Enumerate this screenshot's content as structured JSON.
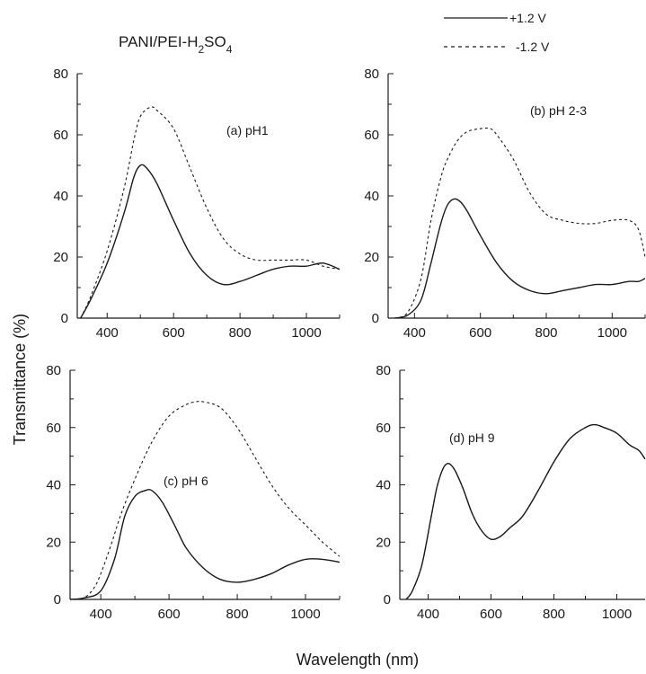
{
  "figure": {
    "title": "PANI/PEI-H",
    "title_sub": "2",
    "title_mid": "SO",
    "title_sub2": "4",
    "xlabel": "Wavelength (nm)",
    "ylabel": "Transmittance (%)"
  },
  "legend": [
    {
      "label": "+1.2 V",
      "style": "solid"
    },
    {
      "label": "-1.2 V",
      "style": "dashed"
    }
  ],
  "chart_data": [
    {
      "type": "line",
      "panel_label": "(a) pH1",
      "xlim": [
        310,
        1100
      ],
      "ylim": [
        0,
        80
      ],
      "xticks": [
        400,
        600,
        800,
        1000
      ],
      "xtick_labels": [
        "400",
        "600",
        "800",
        "1000"
      ],
      "yticks": [
        0,
        20,
        40,
        60,
        80
      ],
      "ytick_labels": [
        "0",
        "20",
        "40",
        "60",
        "80"
      ],
      "series": [
        {
          "name": "+1.2 V",
          "style": "solid",
          "x": [
            320,
            350,
            400,
            450,
            480,
            500,
            520,
            550,
            600,
            650,
            700,
            750,
            800,
            850,
            900,
            950,
            1000,
            1050,
            1100
          ],
          "y": [
            0,
            6,
            18,
            34,
            46,
            50,
            49,
            44,
            32,
            21,
            14,
            11,
            12,
            14,
            16,
            17,
            17,
            18,
            16
          ]
        },
        {
          "name": "-1.2 V",
          "style": "dashed",
          "x": [
            320,
            350,
            400,
            450,
            480,
            500,
            530,
            550,
            600,
            650,
            700,
            750,
            800,
            850,
            900,
            950,
            1000,
            1050,
            1100
          ],
          "y": [
            0,
            7,
            22,
            42,
            58,
            66,
            69,
            68,
            62,
            49,
            36,
            26,
            21,
            19,
            19,
            19,
            19,
            17,
            16
          ]
        }
      ]
    },
    {
      "type": "line",
      "panel_label": "(b) pH 2-3",
      "xlim": [
        320,
        1100
      ],
      "ylim": [
        0,
        80
      ],
      "xticks": [
        400,
        600,
        800,
        1000
      ],
      "xtick_labels": [
        "400",
        "600",
        "800",
        "1000"
      ],
      "yticks": [
        0,
        20,
        40,
        60,
        80
      ],
      "ytick_labels": [
        "0",
        "20",
        "40",
        "60",
        "80"
      ],
      "series": [
        {
          "name": "+1.2 V",
          "style": "solid",
          "x": [
            340,
            380,
            420,
            450,
            480,
            500,
            520,
            540,
            560,
            600,
            650,
            700,
            750,
            800,
            850,
            900,
            950,
            1000,
            1050,
            1080,
            1100
          ],
          "y": [
            0,
            1,
            6,
            18,
            31,
            37,
            39,
            38,
            35,
            27,
            18,
            12,
            9,
            8,
            9,
            10,
            11,
            11,
            12,
            12,
            13
          ]
        },
        {
          "name": "-1.2 V",
          "style": "dashed",
          "x": [
            340,
            380,
            420,
            450,
            480,
            500,
            530,
            560,
            600,
            630,
            650,
            700,
            750,
            800,
            850,
            900,
            950,
            1000,
            1050,
            1080,
            1100
          ],
          "y": [
            0,
            2,
            13,
            32,
            46,
            52,
            58,
            61,
            62,
            62,
            60,
            52,
            41,
            34,
            32,
            31,
            31,
            32,
            32,
            29,
            20
          ]
        }
      ]
    },
    {
      "type": "line",
      "panel_label": "(c) pH 6",
      "xlim": [
        310,
        1100
      ],
      "ylim": [
        0,
        80
      ],
      "xticks": [
        400,
        600,
        800,
        1000
      ],
      "xtick_labels": [
        "400",
        "600",
        "800",
        "1000"
      ],
      "yticks": [
        0,
        20,
        40,
        60,
        80
      ],
      "ytick_labels": [
        "0",
        "20",
        "40",
        "60",
        "80"
      ],
      "series": [
        {
          "name": "+1.2 V",
          "style": "solid",
          "x": [
            310,
            350,
            400,
            440,
            470,
            500,
            530,
            550,
            580,
            620,
            650,
            700,
            750,
            800,
            850,
            900,
            950,
            1000,
            1050,
            1100
          ],
          "y": [
            0,
            0.5,
            3,
            14,
            29,
            36,
            38,
            38,
            34,
            25,
            18,
            11,
            7,
            6,
            7,
            9,
            12,
            14,
            14,
            13
          ]
        },
        {
          "name": "-1.2 V",
          "style": "dashed",
          "x": [
            310,
            350,
            380,
            400,
            430,
            460,
            500,
            550,
            600,
            650,
            680,
            700,
            750,
            800,
            850,
            900,
            950,
            1000,
            1050,
            1100
          ],
          "y": [
            0,
            0.5,
            4,
            9,
            19,
            30,
            42,
            55,
            64,
            68,
            69,
            69,
            67,
            60,
            50,
            40,
            32,
            26,
            20,
            15
          ]
        }
      ]
    },
    {
      "type": "line",
      "panel_label": "(d) pH 9",
      "xlim": [
        310,
        1090
      ],
      "ylim": [
        0,
        80
      ],
      "xticks": [
        400,
        600,
        800,
        1000
      ],
      "xtick_labels": [
        "400",
        "600",
        "800",
        "1000"
      ],
      "yticks": [
        0,
        20,
        40,
        60,
        80
      ],
      "ytick_labels": [
        "0",
        "20",
        "40",
        "60",
        "80"
      ],
      "series": [
        {
          "name": "+1.2 V",
          "style": "solid",
          "x": [
            330,
            350,
            380,
            410,
            430,
            455,
            480,
            510,
            540,
            570,
            600,
            630,
            660,
            700,
            750,
            800,
            850,
            900,
            930,
            960,
            1000,
            1040,
            1070,
            1090
          ],
          "y": [
            0,
            3,
            12,
            29,
            40,
            47,
            46,
            39,
            30,
            24,
            21,
            22,
            25,
            29,
            38,
            48,
            56,
            60,
            61,
            60,
            58,
            54,
            52,
            49
          ]
        },
        {
          "name": "-1.2 V",
          "style": "dashed",
          "x": [
            330,
            350,
            380,
            410,
            430,
            455,
            480,
            510,
            540,
            570,
            600,
            630,
            660,
            700,
            750,
            800,
            850,
            900,
            930,
            960,
            1000,
            1040,
            1070,
            1090
          ],
          "y": [
            0,
            3,
            12,
            29,
            40,
            47,
            46,
            39,
            30,
            24,
            21,
            22,
            25,
            29,
            38,
            48,
            56,
            60,
            61,
            60,
            58,
            54,
            52,
            49
          ]
        }
      ]
    }
  ]
}
